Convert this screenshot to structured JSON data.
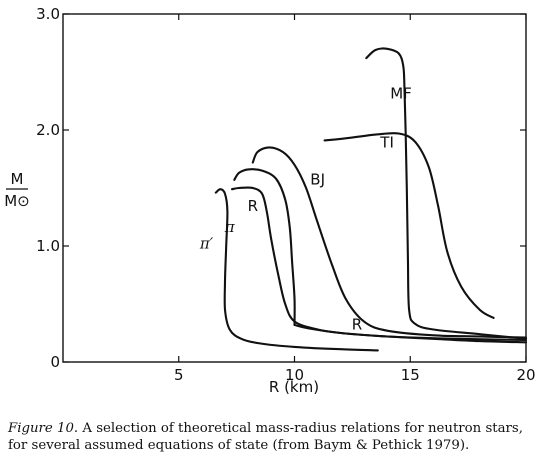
{
  "chart_data": {
    "type": "line",
    "xlabel": "R (km)",
    "ylabel_top": "M",
    "ylabel_bottom": "M⊙",
    "xlim": [
      0,
      20
    ],
    "ylim": [
      0,
      3.0
    ],
    "x_ticks": [
      {
        "value": 5,
        "label": "5"
      },
      {
        "value": 10,
        "label": "10"
      },
      {
        "value": 15,
        "label": "15"
      },
      {
        "value": 20,
        "label": "20"
      }
    ],
    "y_ticks": [
      {
        "value": 0,
        "label": "0"
      },
      {
        "value": 1.0,
        "label": "1.0"
      },
      {
        "value": 2.0,
        "label": "2.0"
      },
      {
        "value": 3.0,
        "label": "3.0"
      }
    ],
    "grid": false,
    "legend": "none",
    "series": [
      {
        "name": "π′",
        "label_at": [
          6.2,
          0.98
        ],
        "points": [
          [
            13.6,
            0.1
          ],
          [
            12.0,
            0.11
          ],
          [
            10.0,
            0.13
          ],
          [
            8.5,
            0.16
          ],
          [
            7.7,
            0.2
          ],
          [
            7.2,
            0.28
          ],
          [
            7.0,
            0.45
          ],
          [
            7.0,
            0.7
          ],
          [
            7.05,
            1.0
          ],
          [
            7.1,
            1.3
          ],
          [
            7.0,
            1.45
          ],
          [
            6.8,
            1.49
          ],
          [
            6.6,
            1.46
          ]
        ]
      },
      {
        "name": "π",
        "label_at": [
          7.2,
          1.12
        ],
        "points": [
          [
            20.0,
            0.19
          ],
          [
            17.0,
            0.2
          ],
          [
            14.0,
            0.22
          ],
          [
            12.0,
            0.25
          ],
          [
            11.0,
            0.28
          ],
          [
            10.0,
            0.35
          ],
          [
            9.6,
            0.5
          ],
          [
            9.3,
            0.75
          ],
          [
            9.0,
            1.05
          ],
          [
            8.8,
            1.3
          ],
          [
            8.6,
            1.45
          ],
          [
            8.2,
            1.5
          ],
          [
            7.6,
            1.5
          ],
          [
            7.3,
            1.49
          ]
        ]
      },
      {
        "name": "R",
        "label_at": [
          8.2,
          1.3
        ],
        "points": [
          [
            10.0,
            0.32
          ],
          [
            10.0,
            0.55
          ],
          [
            9.9,
            0.85
          ],
          [
            9.8,
            1.15
          ],
          [
            9.6,
            1.4
          ],
          [
            9.2,
            1.58
          ],
          [
            8.6,
            1.65
          ],
          [
            8.0,
            1.66
          ],
          [
            7.6,
            1.63
          ],
          [
            7.4,
            1.57
          ]
        ]
      },
      {
        "name": "R",
        "label_at": [
          12.7,
          0.28
        ],
        "points": [
          [
            10.0,
            0.32
          ],
          [
            10.6,
            0.29
          ],
          [
            12.0,
            0.25
          ],
          [
            14.0,
            0.22
          ],
          [
            16.0,
            0.2
          ],
          [
            18.0,
            0.18
          ],
          [
            20.0,
            0.17
          ]
        ]
      },
      {
        "name": "BJ",
        "label_at": [
          11.0,
          1.53
        ],
        "points": [
          [
            20.0,
            0.21
          ],
          [
            18.0,
            0.22
          ],
          [
            16.0,
            0.23
          ],
          [
            14.0,
            0.27
          ],
          [
            13.0,
            0.35
          ],
          [
            12.2,
            0.55
          ],
          [
            11.6,
            0.85
          ],
          [
            11.0,
            1.2
          ],
          [
            10.5,
            1.5
          ],
          [
            10.0,
            1.7
          ],
          [
            9.5,
            1.81
          ],
          [
            8.9,
            1.85
          ],
          [
            8.4,
            1.81
          ],
          [
            8.2,
            1.72
          ]
        ]
      },
      {
        "name": "TI",
        "label_at": [
          14.0,
          1.85
        ],
        "points": [
          [
            18.6,
            0.38
          ],
          [
            18.0,
            0.45
          ],
          [
            17.2,
            0.65
          ],
          [
            16.6,
            0.95
          ],
          [
            16.2,
            1.35
          ],
          [
            15.8,
            1.68
          ],
          [
            15.2,
            1.9
          ],
          [
            14.5,
            1.97
          ],
          [
            13.5,
            1.96
          ],
          [
            12.3,
            1.93
          ],
          [
            11.3,
            1.91
          ]
        ]
      },
      {
        "name": "MF",
        "label_at": [
          14.6,
          2.27
        ],
        "points": [
          [
            20.0,
            0.2
          ],
          [
            18.0,
            0.24
          ],
          [
            16.0,
            0.28
          ],
          [
            15.2,
            0.33
          ],
          [
            14.95,
            0.45
          ],
          [
            14.9,
            0.9
          ],
          [
            14.85,
            1.5
          ],
          [
            14.8,
            2.0
          ],
          [
            14.75,
            2.35
          ],
          [
            14.7,
            2.55
          ],
          [
            14.5,
            2.66
          ],
          [
            14.0,
            2.7
          ],
          [
            13.5,
            2.69
          ],
          [
            13.1,
            2.62
          ]
        ]
      }
    ]
  },
  "caption": {
    "label": "Figure 10.",
    "text": "A selection of theoretical mass-radius relations for neutron stars, for several assumed equations of state (from Baym & Pethick 1979)."
  }
}
